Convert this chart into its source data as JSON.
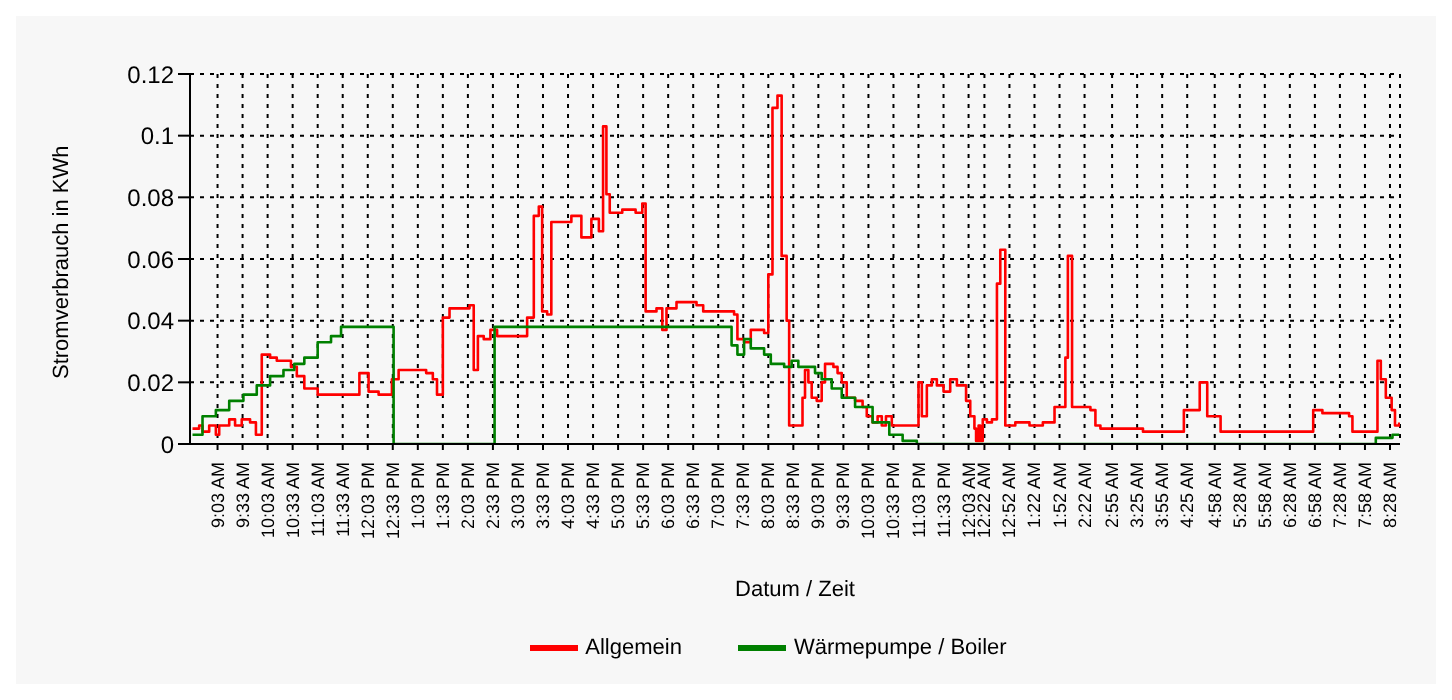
{
  "chart_data": {
    "type": "step",
    "xlabel": "Datum / Zeit",
    "ylabel": "Stromverbrauch in KWh",
    "xlim": [
      "--01-01T08:30",
      "--01-02T08:40"
    ],
    "ylim": [
      0,
      0.12
    ],
    "yticks": [
      0,
      0.02,
      0.04,
      0.06,
      0.08,
      0.1,
      0.12
    ],
    "xticks": [
      {
        "value": "--01-01T09:03",
        "label": "9:03 AM"
      },
      {
        "value": "--01-01T09:33",
        "label": "9:33 AM"
      },
      {
        "value": "--01-01T10:03",
        "label": "10:03 AM"
      },
      {
        "value": "--01-01T10:33",
        "label": "10:33 AM"
      },
      {
        "value": "--01-01T11:03",
        "label": "11:03 AM"
      },
      {
        "value": "--01-01T11:33",
        "label": "11:33 AM"
      },
      {
        "value": "--01-01T12:03",
        "label": "12:03 PM"
      },
      {
        "value": "--01-01T12:33",
        "label": "12:33 PM"
      },
      {
        "value": "--01-01T13:03",
        "label": "1:03 PM"
      },
      {
        "value": "--01-01T13:33",
        "label": "1:33 PM"
      },
      {
        "value": "--01-01T14:03",
        "label": "2:03 PM"
      },
      {
        "value": "--01-01T14:33",
        "label": "2:33 PM"
      },
      {
        "value": "--01-01T15:03",
        "label": "3:03 PM"
      },
      {
        "value": "--01-01T15:33",
        "label": "3:33 PM"
      },
      {
        "value": "--01-01T16:03",
        "label": "4:03 PM"
      },
      {
        "value": "--01-01T16:33",
        "label": "4:33 PM"
      },
      {
        "value": "--01-01T17:03",
        "label": "5:03 PM"
      },
      {
        "value": "--01-01T17:33",
        "label": "5:33 PM"
      },
      {
        "value": "--01-01T18:03",
        "label": "6:03 PM"
      },
      {
        "value": "--01-01T18:33",
        "label": "6:33 PM"
      },
      {
        "value": "--01-01T19:03",
        "label": "7:03 PM"
      },
      {
        "value": "--01-01T19:33",
        "label": "7:33 PM"
      },
      {
        "value": "--01-01T20:03",
        "label": "8:03 PM"
      },
      {
        "value": "--01-01T20:33",
        "label": "8:33 PM"
      },
      {
        "value": "--01-01T21:03",
        "label": "9:03 PM"
      },
      {
        "value": "--01-01T21:33",
        "label": "9:33 PM"
      },
      {
        "value": "--01-01T22:03",
        "label": "10:03 PM"
      },
      {
        "value": "--01-01T22:33",
        "label": "10:33 PM"
      },
      {
        "value": "--01-01T23:03",
        "label": "11:03 PM"
      },
      {
        "value": "--01-01T23:33",
        "label": "11:33 PM"
      },
      {
        "value": "--01-02T00:03",
        "label": "12:03 AM"
      },
      {
        "value": "--01-02T00:22",
        "label": "12:22 AM"
      },
      {
        "value": "--01-02T00:52",
        "label": "12:52 AM"
      },
      {
        "value": "--01-02T01:22",
        "label": "1:22 AM"
      },
      {
        "value": "--01-02T01:52",
        "label": "1:52 AM"
      },
      {
        "value": "--01-02T02:22",
        "label": "2:22 AM"
      },
      {
        "value": "--01-02T02:55",
        "label": "2:55 AM"
      },
      {
        "value": "--01-02T03:25",
        "label": "3:25 AM"
      },
      {
        "value": "--01-02T03:55",
        "label": "3:55 AM"
      },
      {
        "value": "--01-02T04:25",
        "label": "4:25 AM"
      },
      {
        "value": "--01-02T04:58",
        "label": "4:58 AM"
      },
      {
        "value": "--01-02T05:28",
        "label": "5:28 AM"
      },
      {
        "value": "--01-02T05:58",
        "label": "5:58 AM"
      },
      {
        "value": "--01-02T06:28",
        "label": "6:28 AM"
      },
      {
        "value": "--01-02T06:58",
        "label": "6:58 AM"
      },
      {
        "value": "--01-02T07:28",
        "label": "7:28 AM"
      },
      {
        "value": "--01-02T07:58",
        "label": "7:58 AM"
      },
      {
        "value": "--01-02T08:28",
        "label": "8:28 AM"
      }
    ],
    "grid": true,
    "legend": "bottom",
    "marker": "none",
    "line_style": "solid",
    "series": [
      {
        "name": "Allgemein",
        "color": "#ff0000",
        "x": [
          "--01-01T08:33",
          "--01-01T08:41",
          "--01-01T08:45",
          "--01-01T08:53",
          "--01-01T09:01",
          "--01-01T09:05",
          "--01-01T09:17",
          "--01-01T09:24",
          "--01-01T09:32",
          "--01-01T09:42",
          "--01-01T09:49",
          "--01-01T09:56",
          "--01-01T10:06",
          "--01-01T10:14",
          "--01-01T10:31",
          "--01-01T10:38",
          "--01-01T10:47",
          "--01-01T11:03",
          "--01-01T11:35",
          "--01-01T11:53",
          "--01-01T12:04",
          "--01-01T12:16",
          "--01-01T12:32",
          "--01-01T12:40",
          "--01-01T13:01",
          "--01-01T13:13",
          "--01-01T13:21",
          "--01-01T13:26",
          "--01-01T13:33",
          "--01-01T13:41",
          "--01-01T13:53",
          "--01-01T14:05",
          "--01-01T14:10",
          "--01-01T14:15",
          "--01-01T14:22",
          "--01-01T14:30",
          "--01-01T14:38",
          "--01-01T14:50",
          "--01-01T15:06",
          "--01-01T15:14",
          "--01-01T15:22",
          "--01-01T15:28",
          "--01-01T15:32",
          "--01-01T15:38",
          "--01-01T15:43",
          "--01-01T15:55",
          "--01-01T16:07",
          "--01-01T16:19",
          "--01-01T16:31",
          "--01-01T16:40",
          "--01-01T16:45",
          "--01-01T16:49",
          "--01-01T16:53",
          "--01-01T17:08",
          "--01-01T17:24",
          "--01-01T17:32",
          "--01-01T17:36",
          "--01-01T17:49",
          "--01-01T17:56",
          "--01-01T18:01",
          "--01-01T18:13",
          "--01-01T18:37",
          "--01-01T18:45",
          "--01-01T19:01",
          "--01-01T19:22",
          "--01-01T19:26",
          "--01-01T19:34",
          "--01-01T19:42",
          "--01-01T19:58",
          "--01-01T20:03",
          "--01-01T20:08",
          "--01-01T20:14",
          "--01-01T20:19",
          "--01-01T20:25",
          "--01-01T20:28",
          "--01-01T20:44",
          "--01-01T20:47",
          "--01-01T20:51",
          "--01-01T20:55",
          "--01-01T21:01",
          "--01-01T21:07",
          "--01-01T21:11",
          "--01-01T21:21",
          "--01-01T21:26",
          "--01-01T21:31",
          "--01-01T21:37",
          "--01-01T21:47",
          "--01-01T21:56",
          "--01-01T22:01",
          "--01-01T22:08",
          "--01-01T22:14",
          "--01-01T22:19",
          "--01-01T22:24",
          "--01-01T22:31",
          "--01-01T23:03",
          "--01-01T23:07",
          "--01-01T23:13",
          "--01-01T23:19",
          "--01-01T23:25",
          "--01-01T23:33",
          "--01-01T23:41",
          "--01-01T23:49",
          "--01-02T00:00",
          "--01-02T00:05",
          "--01-02T00:10",
          "--01-02T00:12",
          "--01-02T00:15",
          "--01-02T00:17",
          "--01-02T00:20",
          "--01-02T00:25",
          "--01-02T00:31",
          "--01-02T00:37",
          "--01-02T00:41",
          "--01-02T00:47",
          "--01-02T00:59",
          "--01-02T01:16",
          "--01-02T01:32",
          "--01-02T01:46",
          "--01-02T01:59",
          "--01-02T02:02",
          "--01-02T02:07",
          "--01-02T02:29",
          "--01-02T02:35",
          "--01-02T02:41",
          "--01-02T03:08",
          "--01-02T03:32",
          "--01-02T03:57",
          "--01-02T04:21",
          "--01-02T04:40",
          "--01-02T04:49",
          "--01-02T05:05",
          "--01-02T05:37",
          "--01-02T06:10",
          "--01-02T06:42",
          "--01-02T06:56",
          "--01-02T07:07",
          "--01-02T07:39",
          "--01-02T07:43",
          "--01-02T08:03",
          "--01-02T08:13",
          "--01-02T08:17",
          "--01-02T08:23",
          "--01-02T08:30",
          "--01-02T08:34",
          "--01-02T08:39"
        ],
        "values": [
          0.005,
          0.006,
          0.004,
          0.006,
          0.003,
          0.006,
          0.008,
          0.006,
          0.008,
          0.007,
          0.003,
          0.029,
          0.028,
          0.027,
          0.025,
          0.022,
          0.018,
          0.016,
          0.016,
          0.023,
          0.017,
          0.016,
          0.021,
          0.024,
          0.024,
          0.023,
          0.021,
          0.016,
          0.041,
          0.044,
          0.044,
          0.045,
          0.024,
          0.035,
          0.034,
          0.037,
          0.035,
          0.035,
          0.035,
          0.041,
          0.074,
          0.077,
          0.043,
          0.042,
          0.072,
          0.072,
          0.074,
          0.067,
          0.073,
          0.069,
          0.103,
          0.081,
          0.075,
          0.076,
          0.075,
          0.078,
          0.043,
          0.044,
          0.037,
          0.044,
          0.046,
          0.045,
          0.043,
          0.043,
          0.042,
          0.034,
          0.033,
          0.037,
          0.036,
          0.055,
          0.109,
          0.113,
          0.061,
          0.04,
          0.006,
          0.015,
          0.024,
          0.02,
          0.015,
          0.014,
          0.02,
          0.026,
          0.025,
          0.023,
          0.02,
          0.015,
          0.014,
          0.012,
          0.009,
          0.007,
          0.009,
          0.006,
          0.009,
          0.006,
          0.02,
          0.009,
          0.019,
          0.021,
          0.019,
          0.017,
          0.021,
          0.019,
          0.014,
          0.009,
          0.005,
          0.001,
          0.006,
          0.001,
          0.008,
          0.007,
          0.008,
          0.052,
          0.063,
          0.006,
          0.007,
          0.006,
          0.007,
          0.012,
          0.028,
          0.061,
          0.012,
          0.011,
          0.006,
          0.005,
          0.005,
          0.004,
          0.004,
          0.011,
          0.02,
          0.009,
          0.004,
          0.004,
          0.004,
          0.004,
          0.011,
          0.01,
          0.009,
          0.004,
          0.004,
          0.027,
          0.021,
          0.015,
          0.011,
          0.006,
          0.007
        ]
      },
      {
        "name": "Wärmepumpe / Boiler",
        "color": "#008000",
        "x": [
          "--01-01T08:33",
          "--01-01T08:45",
          "--01-01T09:01",
          "--01-01T09:17",
          "--01-01T09:34",
          "--01-01T09:50",
          "--01-01T10:06",
          "--01-01T10:22",
          "--01-01T10:35",
          "--01-01T10:47",
          "--01-01T11:03",
          "--01-01T11:19",
          "--01-01T11:31",
          "--01-01T12:34",
          "--01-01T14:35",
          "--01-01T19:19",
          "--01-01T19:26",
          "--01-01T19:34",
          "--01-01T19:42",
          "--01-01T19:58",
          "--01-01T20:06",
          "--01-01T20:22",
          "--01-01T20:31",
          "--01-01T20:39",
          "--01-01T20:59",
          "--01-01T21:07",
          "--01-01T21:19",
          "--01-01T21:31",
          "--01-01T21:47",
          "--01-01T22:08",
          "--01-01T22:28",
          "--01-01T22:44",
          "--01-01T23:01",
          "--01-02T08:03",
          "--01-02T08:11",
          "--01-02T08:31",
          "--01-02T08:39"
        ],
        "values": [
          0.003,
          0.009,
          0.011,
          0.014,
          0.016,
          0.019,
          0.022,
          0.024,
          0.026,
          0.028,
          0.033,
          0.035,
          0.038,
          0,
          0.038,
          0.032,
          0.029,
          0.034,
          0.031,
          0.029,
          0.026,
          0.025,
          0.027,
          0.025,
          0.023,
          0.021,
          0.018,
          0.015,
          0.012,
          0.007,
          0.003,
          0.001,
          0,
          0,
          0.002,
          0.003,
          0.003
        ]
      }
    ]
  }
}
